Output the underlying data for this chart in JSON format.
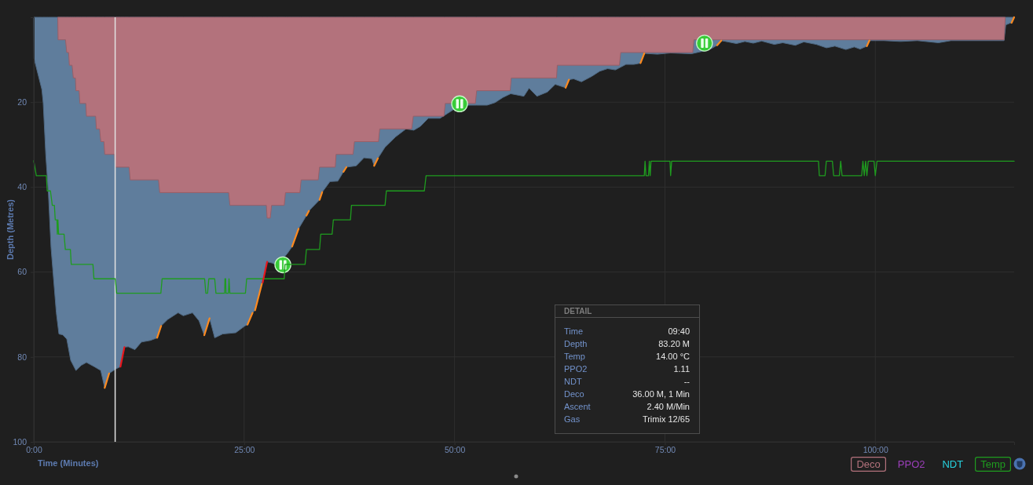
{
  "chart_data": {
    "type": "area",
    "xlabel": "Time (Minutes)",
    "ylabel": "Depth (Metres)",
    "xlim": [
      0,
      116.5
    ],
    "ylim": [
      100,
      0
    ],
    "xticks": [
      {
        "value": 0,
        "label": "0:00"
      },
      {
        "value": 25,
        "label": "25:00"
      },
      {
        "value": 50,
        "label": "50:00"
      },
      {
        "value": 75,
        "label": "75:00"
      },
      {
        "value": 100,
        "label": "100:00"
      }
    ],
    "yticks": [
      20,
      40,
      60,
      80,
      100
    ],
    "grid": true,
    "legend": "bottom right",
    "series": [
      {
        "color": "#5f7d9c",
        "x": [
          0,
          0.03,
          0.49,
          0.96,
          1.12,
          1.43,
          1.75,
          2.05,
          2.68,
          2.99,
          3.45,
          3.92,
          4.39,
          5.01,
          5.63,
          6.26,
          7.19,
          7.96,
          8.43,
          8.95,
          9.68,
          10.3,
          10.77,
          11.23,
          12.02,
          12.79,
          13.88,
          14.66,
          15.13,
          15.9,
          17.15,
          17.77,
          18.86,
          19.64,
          20.26,
          20.89,
          21.5,
          22.44,
          24.0,
          25.09,
          25.4,
          26.0,
          26.3,
          27.1,
          27.2,
          27.73,
          28.36,
          28.97,
          30.22,
          30.7,
          31.47,
          32.4,
          32.7,
          33.03,
          33.96,
          34.27,
          35.2,
          36.13,
          36.8,
          37.15,
          38.31,
          39.24,
          40.18,
          40.45,
          40.9,
          41.74,
          42.98,
          44.23,
          45.16,
          45.94,
          46.87,
          48.27,
          49.21,
          50.14,
          51.38,
          52.63,
          53.87,
          54.81,
          55.74,
          56.67,
          58.24,
          58.86,
          59.79,
          61.04,
          61.97,
          63.2,
          63.6,
          64.15,
          65.08,
          66.32,
          67.26,
          68.19,
          69.12,
          70.37,
          71.31,
          72.1,
          72.55,
          74.11,
          75.66,
          78.15,
          79.5,
          80.5,
          81.2,
          81.7,
          82.5,
          83.5,
          84.5,
          85.5,
          86.5,
          88,
          89,
          90.5,
          91.5,
          93,
          94.2,
          95.2,
          96.5,
          97.5,
          98.2,
          99.0,
          99.3,
          101,
          103,
          105,
          107.5,
          109,
          114,
          115.3,
          115.5,
          116.0,
          116.2,
          116.5
        ],
        "values": [
          0,
          9.7,
          13.3,
          17.0,
          20.1,
          32.5,
          41.8,
          54.2,
          69.6,
          74.6,
          74.8,
          75.8,
          80.8,
          83.2,
          82.0,
          81.3,
          82.3,
          83.2,
          87.3,
          83.9,
          82.9,
          82.3,
          77.7,
          77.6,
          78.3,
          76.5,
          76.1,
          75.5,
          72.7,
          71.2,
          69.6,
          70.3,
          69.6,
          71.5,
          74.9,
          70.9,
          75.5,
          74.6,
          74.3,
          72.7,
          72.4,
          69.6,
          69.0,
          62.8,
          62.5,
          57.6,
          57.9,
          58.5,
          55.4,
          54.0,
          49.8,
          46.7,
          45.6,
          44.9,
          43.0,
          41.2,
          38.7,
          38.6,
          36.4,
          35.3,
          35.0,
          33.1,
          33.3,
          35.0,
          33.2,
          30.6,
          28.2,
          26.3,
          26.6,
          25.7,
          23.8,
          23.8,
          22.6,
          21.4,
          20.7,
          20.7,
          20.7,
          20.1,
          18.9,
          18.0,
          18.6,
          16.7,
          18.6,
          17.6,
          15.8,
          16.6,
          14.7,
          14.5,
          15.2,
          13.9,
          12.7,
          12.1,
          12.4,
          11.1,
          11.1,
          10.8,
          8.5,
          8.7,
          8.4,
          8.6,
          8.0,
          7.4,
          6.6,
          5.5,
          5.8,
          6.2,
          5.7,
          6.1,
          5.6,
          6.4,
          6.0,
          6.6,
          5.8,
          6.4,
          7.2,
          6.8,
          7.6,
          7.0,
          7.5,
          6.8,
          5.5,
          5.5,
          5.7,
          5.5,
          6.0,
          5.5,
          5.5,
          5.5,
          1.8,
          1.4,
          1.3,
          0
        ]
      },
      {
        "name": "Deco",
        "color": "#b3727c",
        "x": [
          2.85,
          2.89,
          3.77,
          3.92,
          4.14,
          4.23,
          4.55,
          4.7,
          4.95,
          5.01,
          5.39,
          5.48,
          6.19,
          6.26,
          7.35,
          7.44,
          7.82,
          7.97,
          8.34,
          8.43,
          9.59,
          9.68,
          11.33,
          11.46,
          14.82,
          14.97,
          23.16,
          23.31,
          27.64,
          27.73,
          28.1,
          28.26,
          29.76,
          29.91,
          31.62,
          31.77,
          33.8,
          33.96,
          35.83,
          35.92,
          37.94,
          38.1,
          40.96,
          41.11,
          44.91,
          45.1,
          48.74,
          48.9,
          52.47,
          52.63,
          56.61,
          56.74,
          62.12,
          62.21,
          69.59,
          69.75,
          78.3,
          78.45,
          115.3,
          115.45
        ],
        "values": [
          0,
          5.3,
          5.3,
          8.3,
          8.3,
          11.3,
          11.3,
          14.3,
          14.3,
          17.3,
          17.3,
          20.3,
          20.3,
          23.3,
          23.3,
          26.3,
          26.3,
          29.3,
          29.3,
          32.3,
          32.3,
          35.3,
          35.3,
          38.3,
          38.3,
          41.3,
          41.3,
          44.3,
          44.3,
          47.3,
          47.3,
          44.3,
          44.3,
          41.3,
          41.3,
          38.3,
          38.3,
          35.3,
          35.3,
          32.3,
          32.3,
          29.3,
          29.3,
          26.3,
          26.3,
          23.3,
          23.3,
          20.3,
          20.3,
          17.3,
          17.3,
          14.3,
          14.3,
          11.3,
          11.3,
          8.3,
          8.3,
          5.3,
          5.3,
          0
        ]
      },
      {
        "name": "PPO2",
        "type": "line",
        "color": "#9c3fbb"
      },
      {
        "name": "NDT",
        "type": "line",
        "color": "#27d3df"
      },
      {
        "name": "Temp",
        "type": "line",
        "color": "#1f9c1f",
        "x": [
          0,
          0.3,
          1.5,
          1.6,
          1.98,
          2.2,
          2.45,
          2.55,
          2.75,
          2.8,
          2.87,
          2.95,
          3.6,
          3.75,
          4.35,
          4.45,
          7.03,
          7.15,
          9.68,
          9.85,
          15.1,
          15.25,
          20.3,
          20.45,
          20.65,
          20.8,
          21.5,
          21.65,
          22.68,
          22.72,
          22.8,
          22.84,
          23.13,
          23.2,
          23.3,
          25.15,
          25.3,
          29.76,
          29.85,
          32.24,
          32.4,
          33.96,
          34.1,
          35.45,
          35.6,
          37.63,
          37.75,
          41.74,
          41.9,
          46.41,
          46.62,
          72.55,
          72.64,
          72.75,
          73.05,
          73.15,
          73.25,
          73.35,
          75.6,
          75.68,
          75.8,
          93.25,
          93.35,
          94.03,
          94.18,
          94.9,
          95.05,
          95.73,
          95.89,
          96.05,
          98.38,
          98.53,
          98.69,
          98.85,
          99.0,
          99.16,
          99.85,
          100.0,
          100.2,
          116.5
        ],
        "values": [
          33.8,
          37.3,
          37.3,
          40.9,
          40.9,
          44.3,
          44.3,
          47.7,
          47.7,
          51.1,
          47.7,
          51.1,
          51.1,
          54.7,
          54.7,
          58.2,
          58.2,
          61.6,
          61.6,
          65.0,
          65.0,
          61.6,
          61.6,
          65.0,
          65.0,
          61.6,
          61.6,
          65.0,
          65.0,
          61.6,
          61.6,
          65.0,
          65.0,
          61.6,
          65.0,
          65.0,
          61.6,
          61.6,
          58.2,
          58.2,
          54.7,
          54.7,
          51.1,
          51.1,
          47.7,
          47.7,
          44.3,
          44.3,
          40.9,
          40.9,
          37.3,
          37.3,
          33.9,
          37.3,
          37.3,
          33.9,
          37.3,
          33.9,
          33.9,
          37.3,
          33.9,
          33.9,
          37.3,
          37.3,
          33.9,
          33.9,
          37.3,
          37.3,
          33.9,
          37.3,
          37.3,
          33.9,
          37.3,
          33.9,
          37.3,
          33.9,
          33.9,
          37.3,
          33.9,
          33.9
        ]
      },
      {
        "type": "line",
        "color": "#ff8a1f",
        "x": [
          8.43,
          8.95,
          9.0,
          14.66,
          15.13,
          15.2,
          20.26,
          20.89,
          21.0,
          25.4,
          26.0,
          26.15,
          26.3,
          27.1,
          27.15,
          30.7,
          31.47,
          31.6,
          32.4,
          32.7,
          32.8,
          33.96,
          34.27,
          34.4,
          36.8,
          37.15,
          37.3,
          40.45,
          40.9,
          41.0,
          63.2,
          63.6,
          63.7,
          72.1,
          72.55,
          72.7,
          81.2,
          81.7,
          81.8,
          99.0,
          99.3,
          99.4,
          116.2,
          116.5
        ],
        "values": [
          87.3,
          83.9,
          null,
          75.5,
          72.7,
          null,
          74.9,
          70.9,
          null,
          72.4,
          69.6,
          null,
          69.0,
          62.8,
          null,
          54.0,
          49.8,
          null,
          46.7,
          45.6,
          null,
          43.0,
          41.2,
          null,
          36.4,
          35.3,
          null,
          35.0,
          33.2,
          null,
          16.6,
          14.7,
          null,
          10.8,
          8.5,
          null,
          6.6,
          5.5,
          null,
          6.8,
          5.5,
          null,
          1.3,
          0
        ]
      },
      {
        "type": "line",
        "color": "#e8161c",
        "x": [
          10.3,
          10.77,
          11.0,
          27.2,
          27.73
        ],
        "values": [
          82.3,
          77.7,
          null,
          62.5,
          57.6
        ]
      },
      {
        "type": "scatter",
        "color": "#38cc38",
        "marker": "circle",
        "x": [
          29.6,
          50.6,
          79.7
        ],
        "values": [
          58.3,
          20.4,
          6.1
        ]
      }
    ],
    "ref_lines": [
      {
        "axis": "x",
        "value": 9.67,
        "color": "#e2e2e2"
      }
    ],
    "annotations": [
      "DETAIL",
      "Time",
      "09:40",
      "Depth",
      "83.20 M",
      "Temp",
      "14.00 °C",
      "PPO2",
      "1.11",
      "NDT",
      "--",
      "Deco",
      "36.00 M, 1 Min",
      "Ascent",
      "2.40 M/Min",
      "Gas",
      "Trimix 12/65"
    ]
  }
}
